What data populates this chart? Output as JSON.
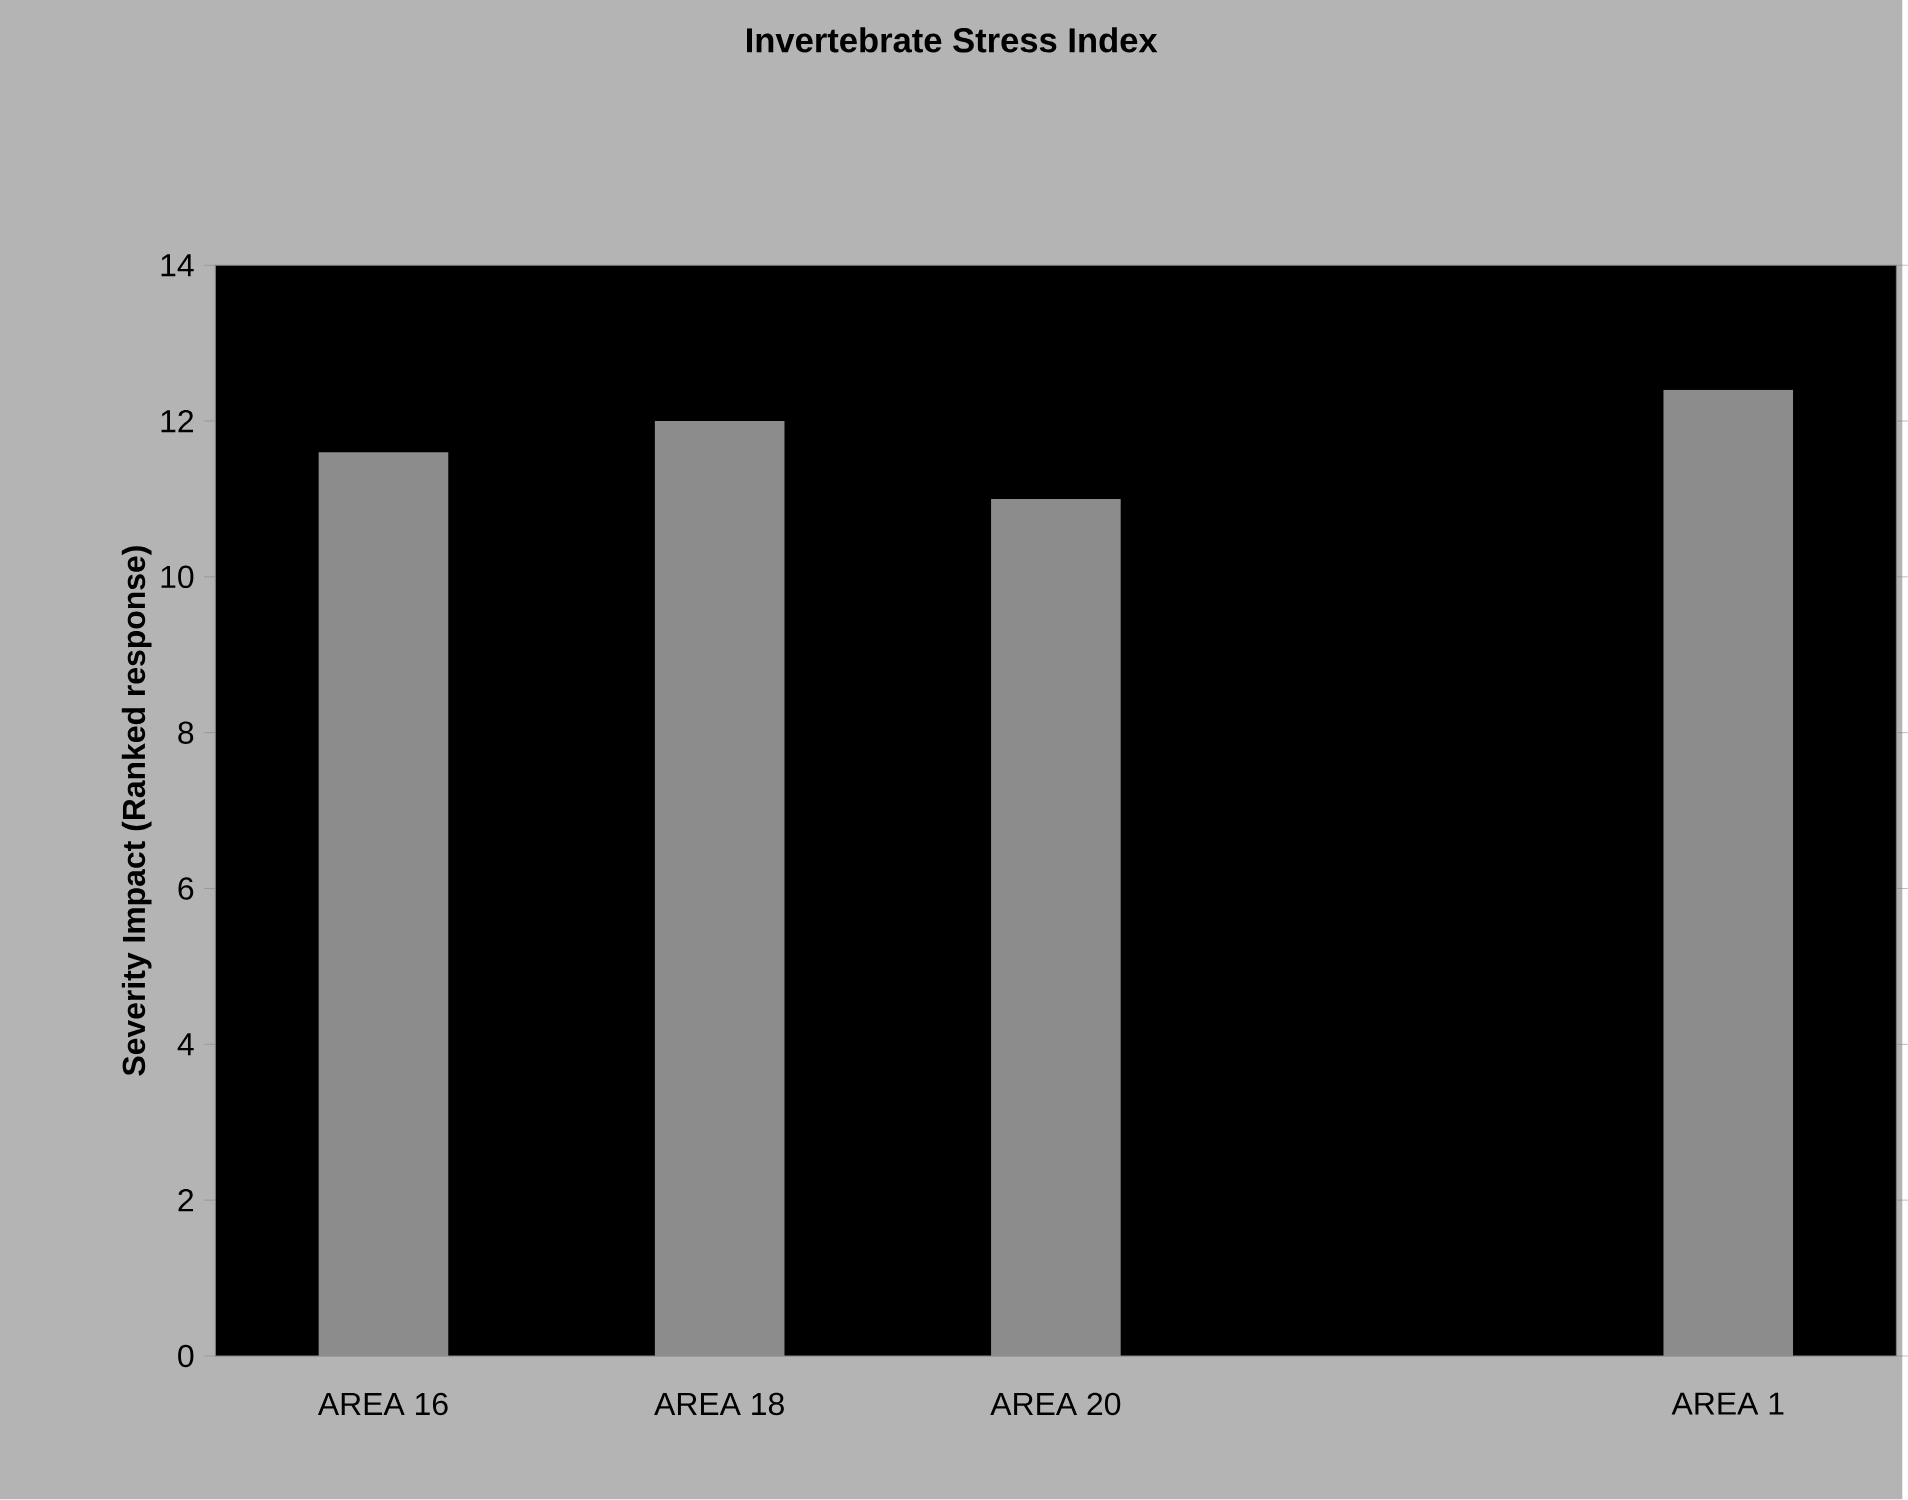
{
  "chart_data": {
    "type": "bar",
    "title": "Invertebrate Stress Index",
    "ylabel": "Severity Impact (Ranked response)",
    "categories": [
      "AREA 16",
      "AREA 18",
      "AREA 20",
      null,
      "AREA 1"
    ],
    "values": [
      11.6,
      12,
      11,
      null,
      12.4
    ],
    "color": "#8c8c8c",
    "ylim": [
      0,
      14
    ],
    "yticks": [
      0,
      2,
      4,
      6,
      8,
      10,
      12,
      14
    ],
    "grid": false
  }
}
